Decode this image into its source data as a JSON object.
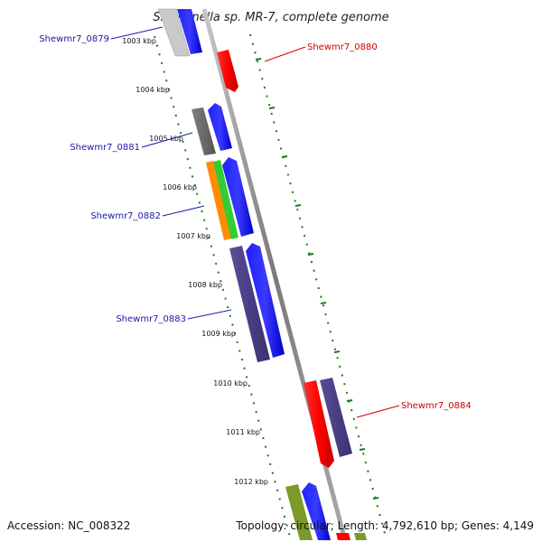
{
  "title": "Shewanella sp. MR-7, complete genome",
  "footer": {
    "accession": "Accession: NC_008322",
    "topology": "Topology: circular; Length: 4,792,610 bp; Genes: 4,149"
  },
  "ticks": [
    {
      "label": "1003 kbp"
    },
    {
      "label": "1004 kbp"
    },
    {
      "label": "1005 kbp"
    },
    {
      "label": "1006 kbp"
    },
    {
      "label": "1007 kbp"
    },
    {
      "label": "1008 kbp"
    },
    {
      "label": "1009 kbp"
    },
    {
      "label": "1010 kbp"
    },
    {
      "label": "1011 kbp"
    },
    {
      "label": "1012 kbp"
    }
  ],
  "gene_labels": [
    {
      "text": "Shewmr7_0879",
      "color": "#1a1aa6"
    },
    {
      "text": "Shewmr7_0880",
      "color": "#cc0000"
    },
    {
      "text": "Shewmr7_0881",
      "color": "#1a1aa6"
    },
    {
      "text": "Shewmr7_0882",
      "color": "#1a1aa6"
    },
    {
      "text": "Shewmr7_0883",
      "color": "#1a1aa6"
    },
    {
      "text": "Shewmr7_0884",
      "color": "#cc0000"
    }
  ],
  "colors": {
    "backbone": "#8a8a8a",
    "tick": "#1a7a1a",
    "reverse_strand": "#0000ff",
    "forward_strand": "#ff0000",
    "purple_feature": "#4b3f86",
    "gray_feature": "#6d6d6d",
    "orange_feature": "#ff8c00",
    "green_feature": "#33cc33",
    "olive_feature": "#7a9a2a"
  }
}
